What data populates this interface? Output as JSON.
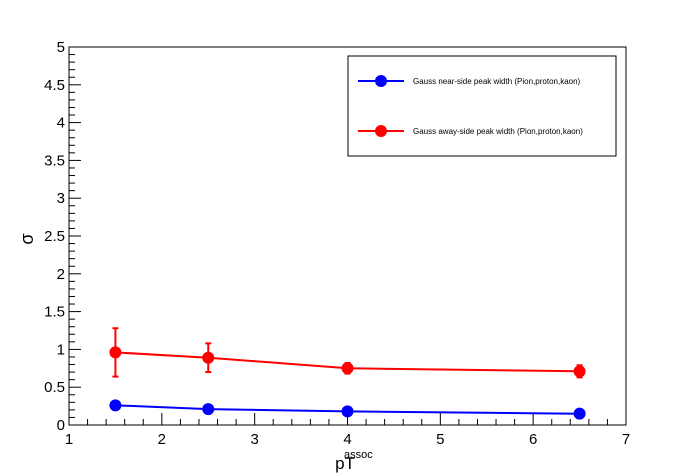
{
  "chart_data": {
    "type": "line",
    "xlabel": "pT",
    "xlabel_sup": "assoc",
    "ylabel": "σ",
    "xlim": [
      1,
      7
    ],
    "ylim": [
      0,
      5
    ],
    "x_ticks": [
      "1",
      "2",
      "3",
      "4",
      "5",
      "6",
      "7"
    ],
    "y_ticks": [
      "0",
      "0.5",
      "1",
      "1.5",
      "2",
      "2.5",
      "3",
      "3.5",
      "4",
      "4.5",
      "5"
    ],
    "grid": false,
    "legend_position": "top-right",
    "series": [
      {
        "name": "Gauss near-side peak width (Pion,proton,kaon)",
        "color": "#0000ff",
        "x": [
          1.5,
          2.5,
          4.0,
          6.5
        ],
        "y": [
          0.26,
          0.21,
          0.18,
          0.15
        ],
        "yerr": [
          0.02,
          0.02,
          0.02,
          0.02
        ]
      },
      {
        "name": "Gauss away-side peak width (Pion,proton,kaon)",
        "color": "#ff0000",
        "x": [
          1.5,
          2.5,
          4.0,
          6.5
        ],
        "y": [
          0.96,
          0.89,
          0.75,
          0.71
        ],
        "yerr": [
          0.32,
          0.19,
          0.07,
          0.08
        ]
      }
    ]
  }
}
